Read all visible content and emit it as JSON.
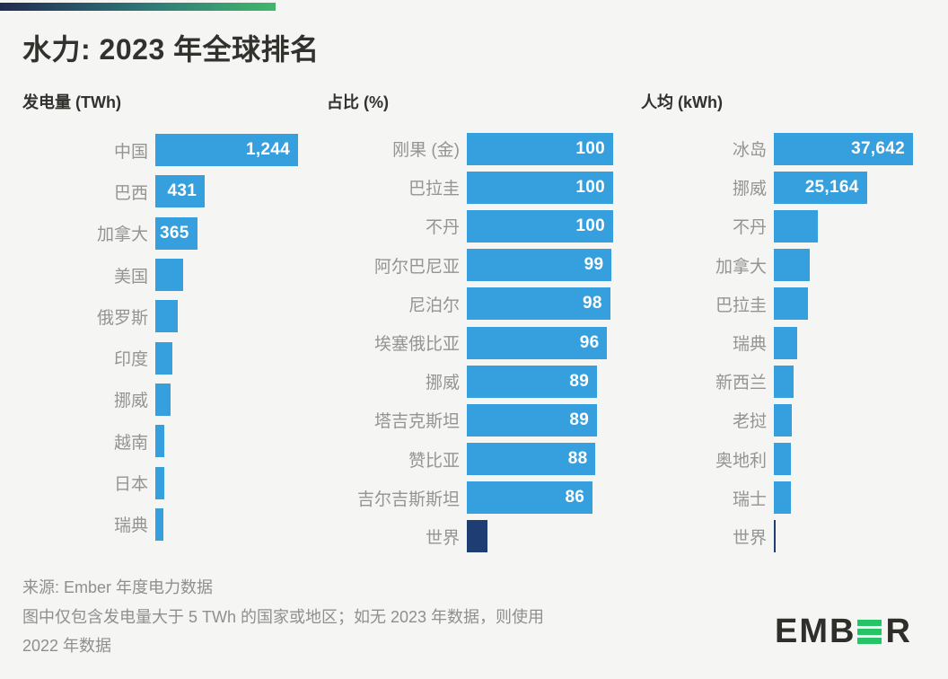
{
  "title": "水力: 2023 年全球排名",
  "colors": {
    "bar": "#36a0de",
    "world_bar": "#1e3d72",
    "background": "#f5f5f3",
    "title_text": "#31312e",
    "label_text": "#949494",
    "footer_text": "#8f8f8f",
    "strip_gradient_start": "#222b52",
    "strip_gradient_end": "#41b76b",
    "logo_green": "#26c468"
  },
  "chart_data": [
    {
      "type": "bar",
      "orientation": "horizontal",
      "title": "发电量 (TWh)",
      "unit": "TWh",
      "max": 1244,
      "rows": [
        {
          "label": "中国",
          "value": 1244,
          "display": "1,244"
        },
        {
          "label": "巴西",
          "value": 431,
          "display": "431"
        },
        {
          "label": "加拿大",
          "value": 365,
          "display": "365"
        },
        {
          "label": "美国",
          "value": 240,
          "display": ""
        },
        {
          "label": "俄罗斯",
          "value": 197,
          "display": ""
        },
        {
          "label": "印度",
          "value": 152,
          "display": ""
        },
        {
          "label": "挪威",
          "value": 136,
          "display": ""
        },
        {
          "label": "越南",
          "value": 82,
          "display": ""
        },
        {
          "label": "日本",
          "value": 76,
          "display": ""
        },
        {
          "label": "瑞典",
          "value": 70,
          "display": ""
        }
      ]
    },
    {
      "type": "bar",
      "orientation": "horizontal",
      "title": "占比 (%)",
      "unit": "%",
      "max": 100,
      "rows": [
        {
          "label": "刚果 (金)",
          "value": 100,
          "display": "100"
        },
        {
          "label": "巴拉圭",
          "value": 100,
          "display": "100"
        },
        {
          "label": "不丹",
          "value": 100,
          "display": "100"
        },
        {
          "label": "阿尔巴尼亚",
          "value": 99,
          "display": "99"
        },
        {
          "label": "尼泊尔",
          "value": 98,
          "display": "98"
        },
        {
          "label": "埃塞俄比亚",
          "value": 96,
          "display": "96"
        },
        {
          "label": "挪威",
          "value": 89,
          "display": "89"
        },
        {
          "label": "塔吉克斯坦",
          "value": 89,
          "display": "89"
        },
        {
          "label": "赞比亚",
          "value": 88,
          "display": "88"
        },
        {
          "label": "吉尔吉斯斯坦",
          "value": 86,
          "display": "86"
        },
        {
          "label": "世界",
          "value": 14,
          "display": "",
          "world": true
        }
      ]
    },
    {
      "type": "bar",
      "orientation": "horizontal",
      "title": "人均 (kWh)",
      "unit": "kWh",
      "max": 37642,
      "rows": [
        {
          "label": "冰岛",
          "value": 37642,
          "display": "37,642"
        },
        {
          "label": "挪威",
          "value": 25164,
          "display": "25,164"
        },
        {
          "label": "不丹",
          "value": 12000,
          "display": ""
        },
        {
          "label": "加拿大",
          "value": 9800,
          "display": ""
        },
        {
          "label": "巴拉圭",
          "value": 9200,
          "display": ""
        },
        {
          "label": "瑞典",
          "value": 6400,
          "display": ""
        },
        {
          "label": "新西兰",
          "value": 5300,
          "display": ""
        },
        {
          "label": "老挝",
          "value": 4800,
          "display": ""
        },
        {
          "label": "奥地利",
          "value": 4700,
          "display": ""
        },
        {
          "label": "瑞士",
          "value": 4500,
          "display": ""
        },
        {
          "label": "世界",
          "value": 530,
          "display": "",
          "world": true
        }
      ]
    }
  ],
  "footer": {
    "lines": [
      "来源: Ember 年度电力数据",
      "图中仅包含发电量大于 5 TWh 的国家或地区；如无 2023 年数据，则使用",
      "2022 年数据"
    ]
  },
  "logo": {
    "prefix": "EMB",
    "suffix": "R",
    "alt": "EMBER"
  }
}
